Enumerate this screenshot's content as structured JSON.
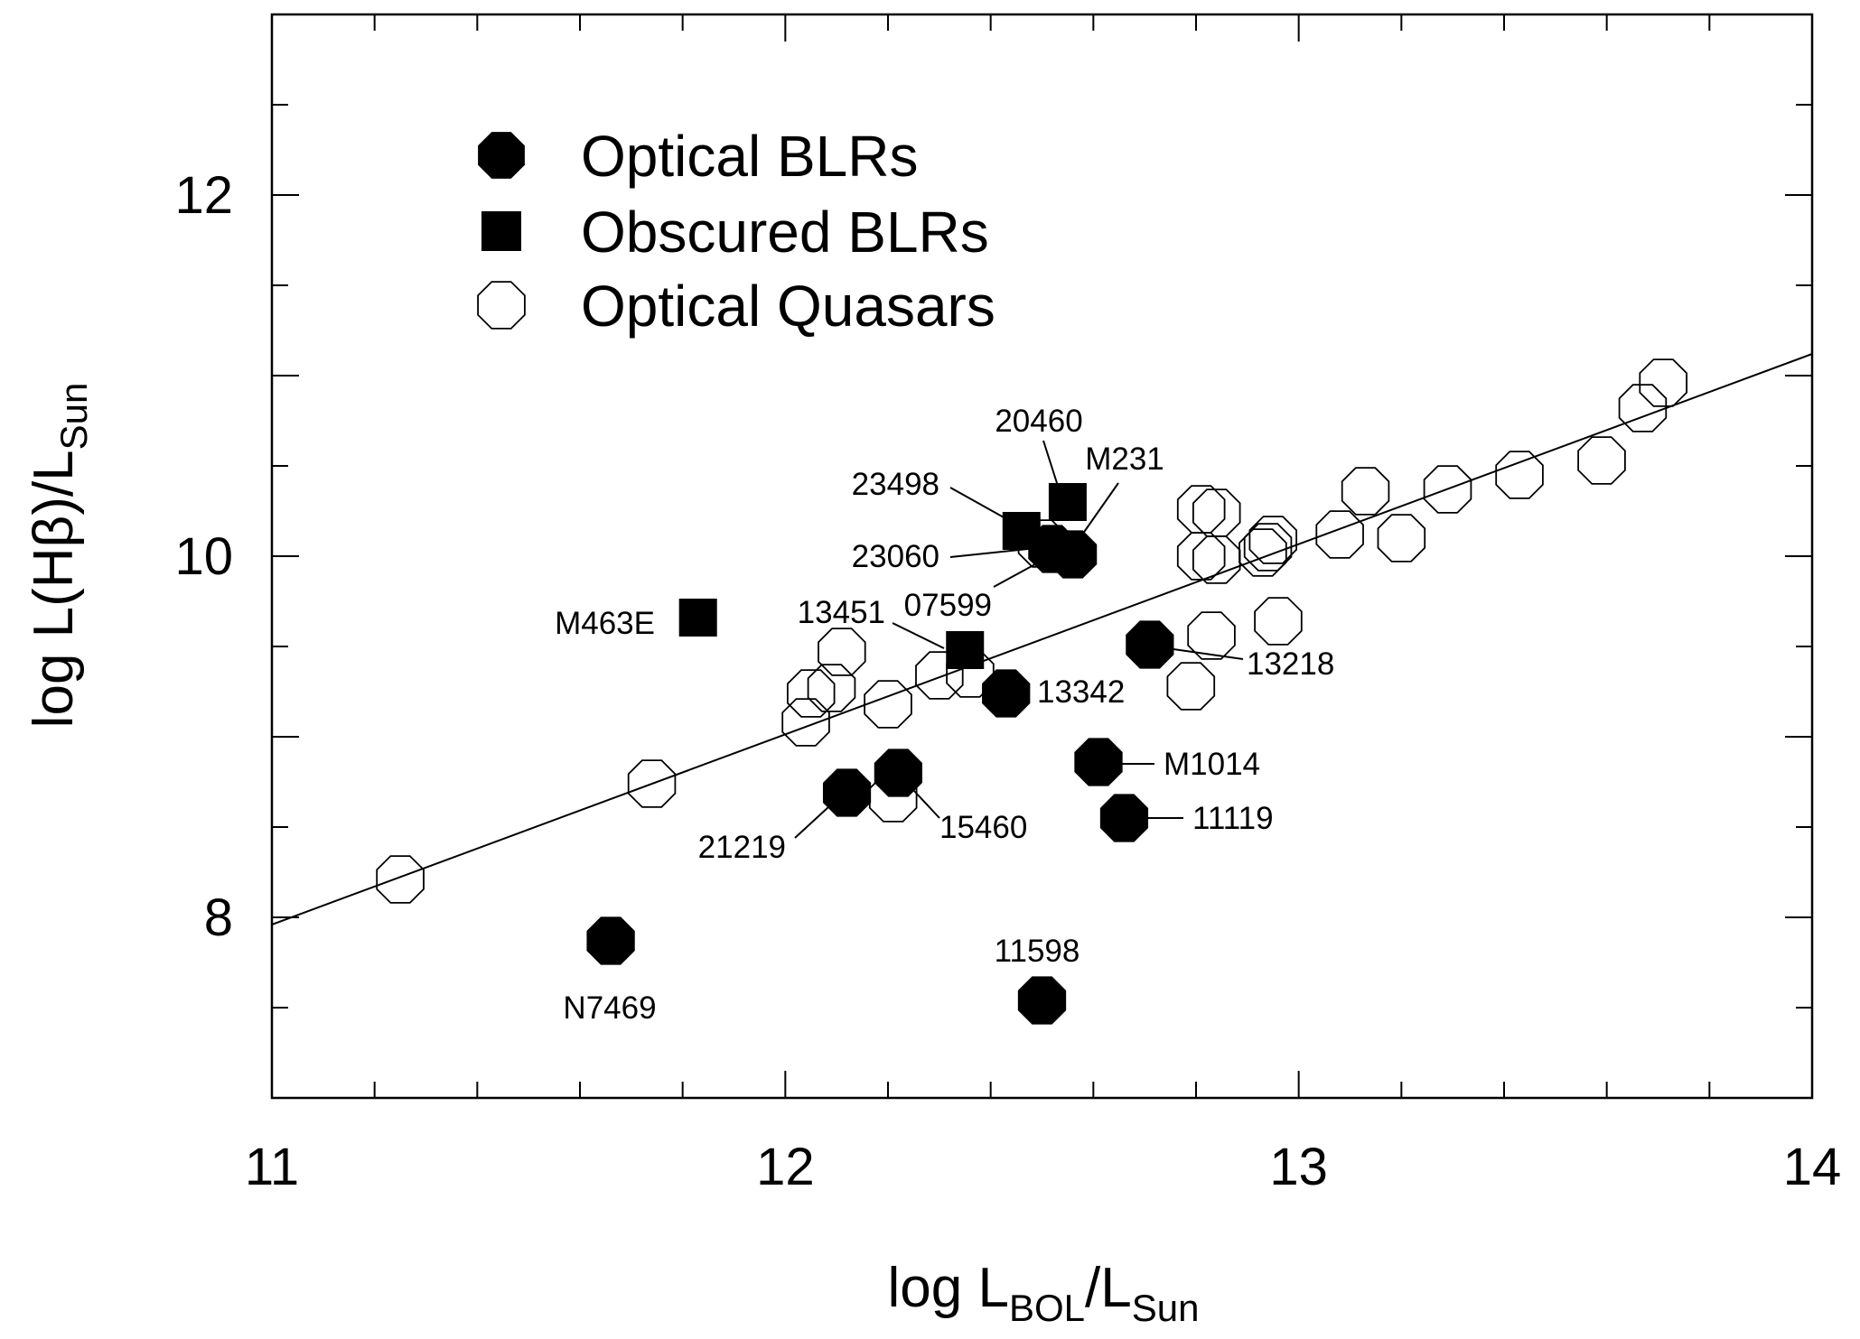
{
  "chart_data": {
    "type": "scatter",
    "xlabel": {
      "prefix": "log L",
      "sub1": "BOL",
      "mid": "/L",
      "sub2": "Sun"
    },
    "ylabel": {
      "prefix": "log L(Hβ)/L",
      "sub": "Sun"
    },
    "xlim": [
      11,
      14
    ],
    "ylim": [
      7,
      13
    ],
    "xticks": [
      "11",
      "12",
      "13",
      "14"
    ],
    "yticks": [
      "8",
      "10",
      "12"
    ],
    "grid": false,
    "legend_position": "top-left",
    "legend": [
      {
        "label": "Optical BLRs",
        "marker": "filled-circle"
      },
      {
        "label": "Obscured BLRs",
        "marker": "filled-square"
      },
      {
        "label": "Optical Quasars",
        "marker": "open-circle"
      }
    ],
    "series": [
      {
        "name": "Optical BLRs",
        "marker": "filled-circle",
        "points": [
          {
            "x": 12.52,
            "y": 10.04,
            "label": ""
          },
          {
            "x": 12.56,
            "y": 10.01,
            "label": "M231"
          },
          {
            "x": 12.71,
            "y": 9.51,
            "label": "13218"
          },
          {
            "x": 12.43,
            "y": 9.24,
            "label": "13342"
          },
          {
            "x": 12.61,
            "y": 8.86,
            "label": "M1014"
          },
          {
            "x": 12.22,
            "y": 8.8,
            "label": "15460"
          },
          {
            "x": 12.12,
            "y": 8.69,
            "label": "21219"
          },
          {
            "x": 12.66,
            "y": 8.55,
            "label": "11119"
          },
          {
            "x": 11.66,
            "y": 7.87,
            "label": "N7469"
          },
          {
            "x": 12.5,
            "y": 7.54,
            "label": "11598"
          }
        ]
      },
      {
        "name": "Obscured BLRs",
        "marker": "filled-square",
        "points": [
          {
            "x": 12.55,
            "y": 10.3,
            "label": "20460"
          },
          {
            "x": 12.46,
            "y": 10.14,
            "label": "23498"
          },
          {
            "x": 12.35,
            "y": 9.48,
            "label": "13451"
          },
          {
            "x": 11.83,
            "y": 9.66,
            "label": "M463E"
          }
        ]
      },
      {
        "name": "Optical Quasars",
        "marker": "open-circle",
        "points": [
          {
            "x": 11.25,
            "y": 8.21
          },
          {
            "x": 11.74,
            "y": 8.74
          },
          {
            "x": 12.04,
            "y": 9.08
          },
          {
            "x": 12.05,
            "y": 9.24
          },
          {
            "x": 12.09,
            "y": 9.27
          },
          {
            "x": 12.11,
            "y": 9.47
          },
          {
            "x": 12.2,
            "y": 9.18
          },
          {
            "x": 12.21,
            "y": 8.66
          },
          {
            "x": 12.3,
            "y": 9.34
          },
          {
            "x": 12.36,
            "y": 9.35
          },
          {
            "x": 12.5,
            "y": 10.07
          },
          {
            "x": 12.79,
            "y": 9.28
          },
          {
            "x": 12.81,
            "y": 10.26
          },
          {
            "x": 12.83,
            "y": 9.56
          },
          {
            "x": 12.84,
            "y": 10.24
          },
          {
            "x": 12.81,
            "y": 10.0
          },
          {
            "x": 12.84,
            "y": 9.98
          },
          {
            "x": 12.93,
            "y": 10.02
          },
          {
            "x": 12.94,
            "y": 10.05
          },
          {
            "x": 12.95,
            "y": 10.09
          },
          {
            "x": 12.96,
            "y": 9.64
          },
          {
            "x": 13.08,
            "y": 10.12
          },
          {
            "x": 13.13,
            "y": 10.36
          },
          {
            "x": 13.2,
            "y": 10.1
          },
          {
            "x": 13.29,
            "y": 10.37
          },
          {
            "x": 13.43,
            "y": 10.45
          },
          {
            "x": 13.59,
            "y": 10.53
          },
          {
            "x": 13.67,
            "y": 10.82
          },
          {
            "x": 13.71,
            "y": 10.96
          }
        ]
      }
    ],
    "fit_line": {
      "x": [
        11,
        14
      ],
      "y": [
        7.96,
        11.12
      ]
    },
    "unlabeled_label": "23060",
    "extra_labels": [
      {
        "text": "23060",
        "anchor_x": 12.5,
        "anchor_y": 10.04
      },
      {
        "text": "07599",
        "anchor_x": 12.52,
        "anchor_y": 10.04
      }
    ]
  }
}
